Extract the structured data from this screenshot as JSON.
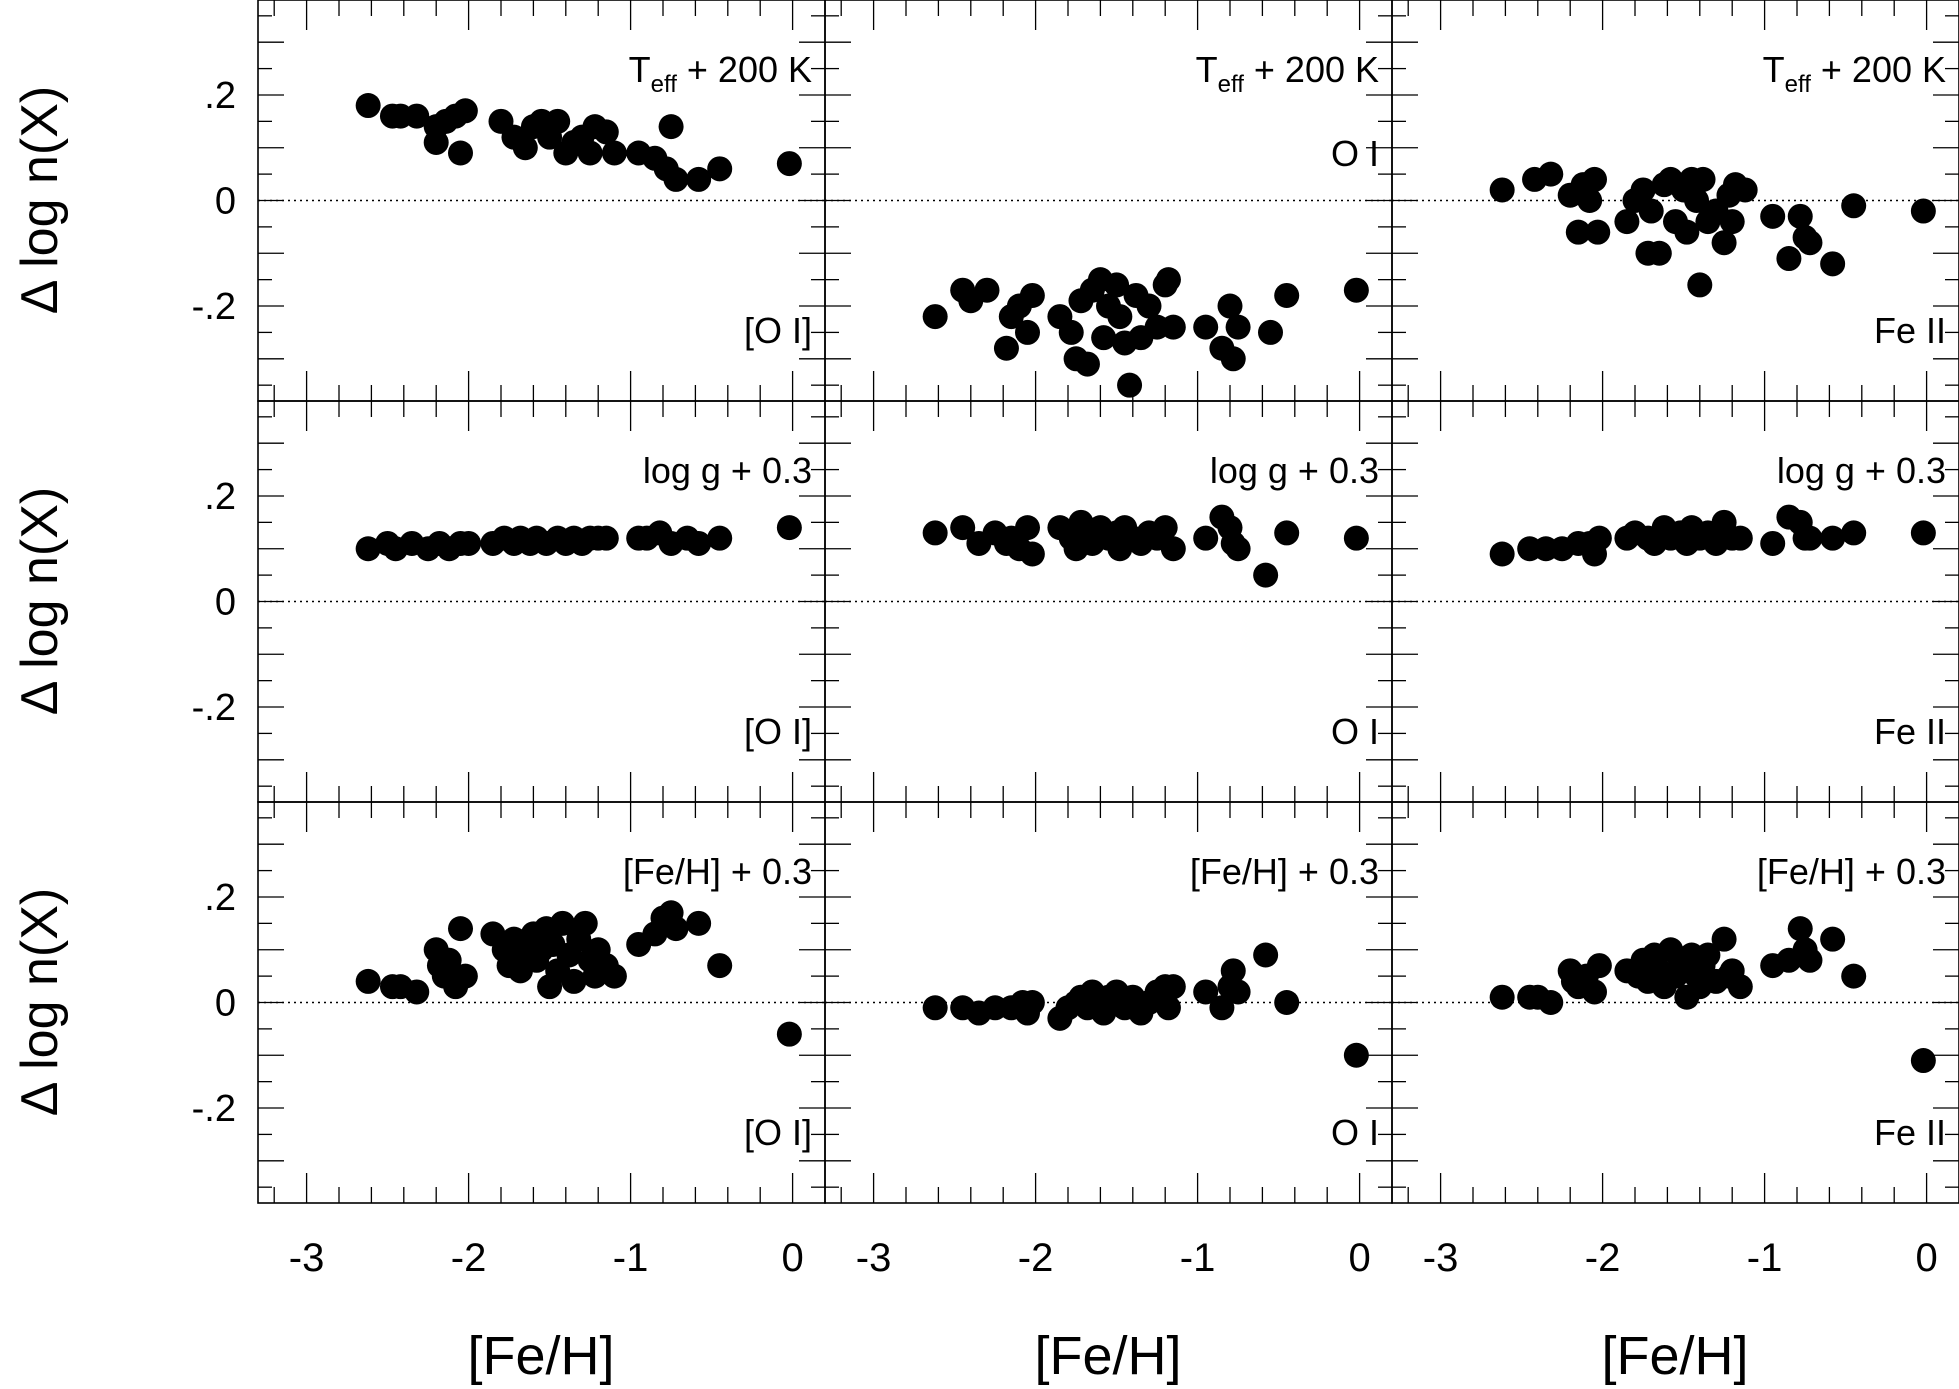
{
  "figure": {
    "ylabel": "Δ log n(X)",
    "xlabel": "[Fe/H]",
    "xticks": [
      "-3",
      "-2",
      "-1",
      "0"
    ],
    "yticks": [
      ".2",
      "0",
      "-.2"
    ],
    "sub_eff": "eff",
    "colors": {
      "ink": "#000000"
    }
  },
  "chart_data": [
    {
      "type": "scatter",
      "species": "[O I]",
      "perturbation": "T",
      "perturbation_sub": "eff",
      "perturbation_rest": " + 200 K",
      "species_position": "bottom-right",
      "xlim": [
        -3.3,
        0.2
      ],
      "ylim": [
        -0.38,
        0.38
      ],
      "points": [
        [
          -2.62,
          0.18
        ],
        [
          -2.47,
          0.16
        ],
        [
          -2.42,
          0.16
        ],
        [
          -2.32,
          0.16
        ],
        [
          -2.2,
          0.14
        ],
        [
          -2.14,
          0.15
        ],
        [
          -2.08,
          0.16
        ],
        [
          -2.02,
          0.17
        ],
        [
          -2.2,
          0.11
        ],
        [
          -2.05,
          0.09
        ],
        [
          -1.8,
          0.15
        ],
        [
          -1.72,
          0.12
        ],
        [
          -1.65,
          0.1
        ],
        [
          -1.6,
          0.14
        ],
        [
          -1.55,
          0.15
        ],
        [
          -1.5,
          0.12
        ],
        [
          -1.45,
          0.15
        ],
        [
          -1.4,
          0.09
        ],
        [
          -1.35,
          0.11
        ],
        [
          -1.3,
          0.12
        ],
        [
          -1.25,
          0.09
        ],
        [
          -1.22,
          0.14
        ],
        [
          -1.15,
          0.13
        ],
        [
          -1.1,
          0.09
        ],
        [
          -0.95,
          0.09
        ],
        [
          -0.85,
          0.08
        ],
        [
          -0.78,
          0.06
        ],
        [
          -0.75,
          0.14
        ],
        [
          -0.72,
          0.04
        ],
        [
          -0.58,
          0.04
        ],
        [
          -0.45,
          0.06
        ],
        [
          -0.02,
          0.07
        ]
      ]
    },
    {
      "type": "scatter",
      "species": "O I",
      "perturbation": "T",
      "perturbation_sub": "eff",
      "perturbation_rest": " + 200 K",
      "species_position": "top-right",
      "xlim": [
        -3.3,
        0.2
      ],
      "ylim": [
        -0.38,
        0.38
      ],
      "points": [
        [
          -2.62,
          -0.22
        ],
        [
          -2.45,
          -0.17
        ],
        [
          -2.4,
          -0.19
        ],
        [
          -2.3,
          -0.17
        ],
        [
          -2.18,
          -0.28
        ],
        [
          -2.15,
          -0.22
        ],
        [
          -2.1,
          -0.2
        ],
        [
          -2.05,
          -0.25
        ],
        [
          -2.02,
          -0.18
        ],
        [
          -1.85,
          -0.22
        ],
        [
          -1.78,
          -0.25
        ],
        [
          -1.75,
          -0.3
        ],
        [
          -1.72,
          -0.19
        ],
        [
          -1.68,
          -0.31
        ],
        [
          -1.65,
          -0.17
        ],
        [
          -1.6,
          -0.15
        ],
        [
          -1.58,
          -0.26
        ],
        [
          -1.55,
          -0.2
        ],
        [
          -1.5,
          -0.16
        ],
        [
          -1.48,
          -0.22
        ],
        [
          -1.45,
          -0.27
        ],
        [
          -1.42,
          -0.35
        ],
        [
          -1.38,
          -0.18
        ],
        [
          -1.35,
          -0.26
        ],
        [
          -1.3,
          -0.2
        ],
        [
          -1.25,
          -0.24
        ],
        [
          -1.2,
          -0.16
        ],
        [
          -1.18,
          -0.15
        ],
        [
          -1.15,
          -0.24
        ],
        [
          -0.95,
          -0.24
        ],
        [
          -0.85,
          -0.28
        ],
        [
          -0.8,
          -0.2
        ],
        [
          -0.78,
          -0.3
        ],
        [
          -0.75,
          -0.24
        ],
        [
          -0.55,
          -0.25
        ],
        [
          -0.45,
          -0.18
        ],
        [
          -0.02,
          -0.17
        ]
      ]
    },
    {
      "type": "scatter",
      "species": "Fe II",
      "perturbation": "T",
      "perturbation_sub": "eff",
      "perturbation_rest": " + 200 K",
      "species_position": "bottom-right",
      "xlim": [
        -3.3,
        0.2
      ],
      "ylim": [
        -0.38,
        0.38
      ],
      "points": [
        [
          -2.62,
          0.02
        ],
        [
          -2.42,
          0.04
        ],
        [
          -2.32,
          0.05
        ],
        [
          -2.2,
          0.01
        ],
        [
          -2.15,
          -0.06
        ],
        [
          -2.12,
          0.03
        ],
        [
          -2.08,
          0.0
        ],
        [
          -2.05,
          0.04
        ],
        [
          -2.03,
          -0.06
        ],
        [
          -1.85,
          -0.04
        ],
        [
          -1.8,
          0.0
        ],
        [
          -1.75,
          0.02
        ],
        [
          -1.72,
          -0.1
        ],
        [
          -1.7,
          -0.02
        ],
        [
          -1.65,
          -0.1
        ],
        [
          -1.62,
          0.03
        ],
        [
          -1.58,
          0.04
        ],
        [
          -1.55,
          -0.04
        ],
        [
          -1.5,
          0.02
        ],
        [
          -1.48,
          -0.06
        ],
        [
          -1.45,
          0.04
        ],
        [
          -1.42,
          0.0
        ],
        [
          -1.4,
          -0.16
        ],
        [
          -1.38,
          0.04
        ],
        [
          -1.35,
          -0.04
        ],
        [
          -1.3,
          -0.02
        ],
        [
          -1.25,
          -0.08
        ],
        [
          -1.22,
          0.01
        ],
        [
          -1.2,
          -0.04
        ],
        [
          -1.18,
          0.03
        ],
        [
          -1.12,
          0.02
        ],
        [
          -0.95,
          -0.03
        ],
        [
          -0.85,
          -0.11
        ],
        [
          -0.78,
          -0.03
        ],
        [
          -0.75,
          -0.07
        ],
        [
          -0.72,
          -0.08
        ],
        [
          -0.58,
          -0.12
        ],
        [
          -0.45,
          -0.01
        ],
        [
          -0.02,
          -0.02
        ]
      ]
    },
    {
      "type": "scatter",
      "species": "[O I]",
      "perturbation": "log g + 0.3",
      "species_position": "bottom-right",
      "xlim": [
        -3.3,
        0.2
      ],
      "ylim": [
        -0.38,
        0.38
      ],
      "points": [
        [
          -2.62,
          0.1
        ],
        [
          -2.5,
          0.11
        ],
        [
          -2.45,
          0.1
        ],
        [
          -2.35,
          0.11
        ],
        [
          -2.25,
          0.1
        ],
        [
          -2.18,
          0.11
        ],
        [
          -2.12,
          0.1
        ],
        [
          -2.05,
          0.11
        ],
        [
          -2.0,
          0.11
        ],
        [
          -1.85,
          0.11
        ],
        [
          -1.78,
          0.12
        ],
        [
          -1.72,
          0.11
        ],
        [
          -1.68,
          0.12
        ],
        [
          -1.62,
          0.11
        ],
        [
          -1.58,
          0.12
        ],
        [
          -1.52,
          0.11
        ],
        [
          -1.45,
          0.12
        ],
        [
          -1.4,
          0.11
        ],
        [
          -1.35,
          0.12
        ],
        [
          -1.3,
          0.11
        ],
        [
          -1.25,
          0.12
        ],
        [
          -1.2,
          0.12
        ],
        [
          -1.15,
          0.12
        ],
        [
          -0.95,
          0.12
        ],
        [
          -0.9,
          0.12
        ],
        [
          -0.82,
          0.13
        ],
        [
          -0.75,
          0.11
        ],
        [
          -0.65,
          0.12
        ],
        [
          -0.58,
          0.11
        ],
        [
          -0.45,
          0.12
        ],
        [
          -0.02,
          0.14
        ]
      ]
    },
    {
      "type": "scatter",
      "species": "O I",
      "perturbation": "log g + 0.3",
      "species_position": "bottom-right",
      "xlim": [
        -3.3,
        0.2
      ],
      "ylim": [
        -0.38,
        0.38
      ],
      "points": [
        [
          -2.62,
          0.13
        ],
        [
          -2.45,
          0.14
        ],
        [
          -2.35,
          0.11
        ],
        [
          -2.25,
          0.13
        ],
        [
          -2.18,
          0.11
        ],
        [
          -2.15,
          0.12
        ],
        [
          -2.1,
          0.1
        ],
        [
          -2.05,
          0.14
        ],
        [
          -2.02,
          0.09
        ],
        [
          -1.85,
          0.14
        ],
        [
          -1.78,
          0.12
        ],
        [
          -1.75,
          0.1
        ],
        [
          -1.72,
          0.15
        ],
        [
          -1.68,
          0.13
        ],
        [
          -1.65,
          0.11
        ],
        [
          -1.6,
          0.14
        ],
        [
          -1.55,
          0.12
        ],
        [
          -1.5,
          0.13
        ],
        [
          -1.48,
          0.1
        ],
        [
          -1.45,
          0.14
        ],
        [
          -1.4,
          0.12
        ],
        [
          -1.35,
          0.11
        ],
        [
          -1.3,
          0.13
        ],
        [
          -1.25,
          0.12
        ],
        [
          -1.2,
          0.14
        ],
        [
          -1.15,
          0.1
        ],
        [
          -0.95,
          0.12
        ],
        [
          -0.85,
          0.16
        ],
        [
          -0.8,
          0.14
        ],
        [
          -0.78,
          0.11
        ],
        [
          -0.75,
          0.1
        ],
        [
          -0.58,
          0.05
        ],
        [
          -0.45,
          0.13
        ],
        [
          -0.02,
          0.12
        ]
      ]
    },
    {
      "type": "scatter",
      "species": "Fe II",
      "perturbation": "log g + 0.3",
      "species_position": "bottom-right",
      "xlim": [
        -3.3,
        0.2
      ],
      "ylim": [
        -0.38,
        0.38
      ],
      "points": [
        [
          -2.62,
          0.09
        ],
        [
          -2.45,
          0.1
        ],
        [
          -2.35,
          0.1
        ],
        [
          -2.25,
          0.1
        ],
        [
          -2.15,
          0.11
        ],
        [
          -2.08,
          0.11
        ],
        [
          -2.05,
          0.09
        ],
        [
          -2.02,
          0.12
        ],
        [
          -1.85,
          0.12
        ],
        [
          -1.8,
          0.13
        ],
        [
          -1.72,
          0.12
        ],
        [
          -1.68,
          0.11
        ],
        [
          -1.62,
          0.14
        ],
        [
          -1.58,
          0.12
        ],
        [
          -1.52,
          0.13
        ],
        [
          -1.48,
          0.11
        ],
        [
          -1.45,
          0.14
        ],
        [
          -1.4,
          0.12
        ],
        [
          -1.35,
          0.13
        ],
        [
          -1.3,
          0.11
        ],
        [
          -1.25,
          0.15
        ],
        [
          -1.2,
          0.12
        ],
        [
          -1.15,
          0.12
        ],
        [
          -0.95,
          0.11
        ],
        [
          -0.85,
          0.16
        ],
        [
          -0.78,
          0.15
        ],
        [
          -0.75,
          0.12
        ],
        [
          -0.72,
          0.12
        ],
        [
          -0.58,
          0.12
        ],
        [
          -0.45,
          0.13
        ],
        [
          -0.02,
          0.13
        ]
      ]
    },
    {
      "type": "scatter",
      "species": "[O I]",
      "perturbation": "[Fe/H] + 0.3",
      "species_position": "bottom-right",
      "xlim": [
        -3.3,
        0.2
      ],
      "ylim": [
        -0.38,
        0.38
      ],
      "points": [
        [
          -2.62,
          0.04
        ],
        [
          -2.47,
          0.03
        ],
        [
          -2.42,
          0.03
        ],
        [
          -2.32,
          0.02
        ],
        [
          -2.2,
          0.1
        ],
        [
          -2.18,
          0.07
        ],
        [
          -2.15,
          0.05
        ],
        [
          -2.12,
          0.08
        ],
        [
          -2.08,
          0.03
        ],
        [
          -2.05,
          0.14
        ],
        [
          -2.02,
          0.05
        ],
        [
          -1.85,
          0.13
        ],
        [
          -1.78,
          0.1
        ],
        [
          -1.75,
          0.07
        ],
        [
          -1.72,
          0.12
        ],
        [
          -1.68,
          0.06
        ],
        [
          -1.65,
          0.09
        ],
        [
          -1.6,
          0.13
        ],
        [
          -1.58,
          0.08
        ],
        [
          -1.55,
          0.1
        ],
        [
          -1.52,
          0.14
        ],
        [
          -1.5,
          0.03
        ],
        [
          -1.48,
          0.11
        ],
        [
          -1.45,
          0.06
        ],
        [
          -1.42,
          0.15
        ],
        [
          -1.38,
          0.09
        ],
        [
          -1.35,
          0.04
        ],
        [
          -1.32,
          0.12
        ],
        [
          -1.28,
          0.15
        ],
        [
          -1.25,
          0.08
        ],
        [
          -1.22,
          0.05
        ],
        [
          -1.2,
          0.1
        ],
        [
          -1.15,
          0.07
        ],
        [
          -1.1,
          0.05
        ],
        [
          -0.95,
          0.11
        ],
        [
          -0.85,
          0.13
        ],
        [
          -0.8,
          0.16
        ],
        [
          -0.75,
          0.17
        ],
        [
          -0.72,
          0.14
        ],
        [
          -0.58,
          0.15
        ],
        [
          -0.45,
          0.07
        ],
        [
          -0.02,
          -0.06
        ]
      ]
    },
    {
      "type": "scatter",
      "species": "O I",
      "perturbation": "[Fe/H] + 0.3",
      "species_position": "bottom-right",
      "xlim": [
        -3.3,
        0.2
      ],
      "ylim": [
        -0.38,
        0.38
      ],
      "points": [
        [
          -2.62,
          -0.01
        ],
        [
          -2.45,
          -0.01
        ],
        [
          -2.35,
          -0.02
        ],
        [
          -2.25,
          -0.01
        ],
        [
          -2.15,
          -0.01
        ],
        [
          -2.08,
          0.0
        ],
        [
          -2.05,
          -0.02
        ],
        [
          -2.02,
          0.0
        ],
        [
          -1.85,
          -0.03
        ],
        [
          -1.8,
          -0.01
        ],
        [
          -1.75,
          0.0
        ],
        [
          -1.72,
          0.01
        ],
        [
          -1.68,
          -0.01
        ],
        [
          -1.65,
          0.02
        ],
        [
          -1.6,
          0.0
        ],
        [
          -1.58,
          -0.02
        ],
        [
          -1.55,
          0.01
        ],
        [
          -1.5,
          0.02
        ],
        [
          -1.48,
          0.0
        ],
        [
          -1.45,
          -0.01
        ],
        [
          -1.4,
          0.01
        ],
        [
          -1.35,
          -0.02
        ],
        [
          -1.3,
          0.0
        ],
        [
          -1.25,
          0.02
        ],
        [
          -1.2,
          0.03
        ],
        [
          -1.18,
          -0.01
        ],
        [
          -1.15,
          0.03
        ],
        [
          -0.95,
          0.02
        ],
        [
          -0.85,
          -0.01
        ],
        [
          -0.8,
          0.03
        ],
        [
          -0.78,
          0.06
        ],
        [
          -0.75,
          0.02
        ],
        [
          -0.58,
          0.09
        ],
        [
          -0.45,
          0.0
        ],
        [
          -0.02,
          -0.1
        ]
      ]
    },
    {
      "type": "scatter",
      "species": "Fe II",
      "perturbation": "[Fe/H] + 0.3",
      "species_position": "bottom-right",
      "xlim": [
        -3.3,
        0.2
      ],
      "ylim": [
        -0.38,
        0.38
      ],
      "points": [
        [
          -2.62,
          0.01
        ],
        [
          -2.45,
          0.01
        ],
        [
          -2.4,
          0.01
        ],
        [
          -2.32,
          0.0
        ],
        [
          -2.2,
          0.06
        ],
        [
          -2.18,
          0.04
        ],
        [
          -2.15,
          0.03
        ],
        [
          -2.1,
          0.05
        ],
        [
          -2.05,
          0.02
        ],
        [
          -2.02,
          0.07
        ],
        [
          -1.85,
          0.06
        ],
        [
          -1.78,
          0.05
        ],
        [
          -1.75,
          0.08
        ],
        [
          -1.72,
          0.04
        ],
        [
          -1.68,
          0.09
        ],
        [
          -1.65,
          0.06
        ],
        [
          -1.62,
          0.03
        ],
        [
          -1.58,
          0.1
        ],
        [
          -1.55,
          0.05
        ],
        [
          -1.52,
          0.08
        ],
        [
          -1.48,
          0.01
        ],
        [
          -1.45,
          0.09
        ],
        [
          -1.42,
          0.05
        ],
        [
          -1.4,
          0.03
        ],
        [
          -1.38,
          0.07
        ],
        [
          -1.35,
          0.09
        ],
        [
          -1.3,
          0.04
        ],
        [
          -1.25,
          0.12
        ],
        [
          -1.22,
          0.05
        ],
        [
          -1.2,
          0.06
        ],
        [
          -1.15,
          0.03
        ],
        [
          -0.95,
          0.07
        ],
        [
          -0.85,
          0.08
        ],
        [
          -0.78,
          0.14
        ],
        [
          -0.75,
          0.1
        ],
        [
          -0.72,
          0.08
        ],
        [
          -0.58,
          0.12
        ],
        [
          -0.45,
          0.05
        ],
        [
          -0.02,
          -0.11
        ]
      ]
    }
  ]
}
